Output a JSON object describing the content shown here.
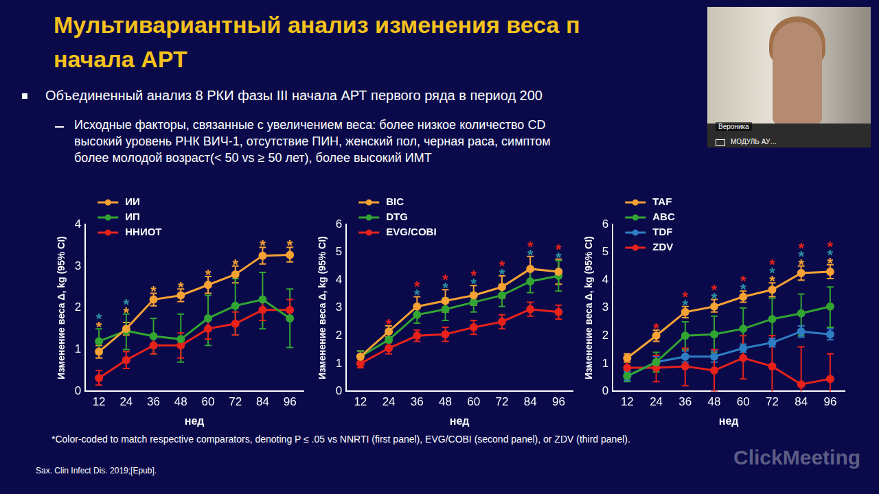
{
  "slide": {
    "title_lines": [
      "Мультивариантный анализ изменения веса п",
      "начала АРТ"
    ],
    "bullet": "Объединенный анализ 8 РКИ фазы III начала АРТ первого ряда в период 200",
    "sub_bullet_lines": [
      "Исходные факторы, связанные с увеличением веса: более низкое количество CD",
      "высокий уровень РНК ВИЧ-1, отсутствие ПИН, женский пол, черная раса, симптом",
      "более молодой возраст(< 50 vs ≥ 50 лет), более высокий ИМТ"
    ],
    "footnote": "*Color-coded to match respective comparators, denoting P ≤ .05 vs NNRTI (first panel), EVG/COBI (second panel), or ZDV (third panel).",
    "source": "Sax. Clin Infect Dis. 2019;[Epub].",
    "video_name": "Вероника",
    "video_label": "МОДУЛЬ АУ…",
    "watermark": "ClickMeeting"
  },
  "chart_data": [
    {
      "type": "line",
      "x_label": "нед",
      "y_label": "Изменение веса Δ, kg (95% CI)",
      "categories": [
        "12",
        "24",
        "36",
        "48",
        "60",
        "72",
        "84",
        "96"
      ],
      "ylim": [
        0,
        4
      ],
      "yticks": [
        0,
        1,
        2,
        3,
        4
      ],
      "grid": false,
      "legend": "top-left",
      "star_label": "*",
      "series": [
        {
          "name": "ИИ",
          "color": "#f7a234",
          "values": [
            0.95,
            1.5,
            2.2,
            2.3,
            2.55,
            2.8,
            3.25,
            3.27
          ],
          "ci_low": [
            0.8,
            1.35,
            2.05,
            2.15,
            2.35,
            2.6,
            3.05,
            3.1
          ],
          "ci_high": [
            1.1,
            1.65,
            2.35,
            2.45,
            2.75,
            3.0,
            3.45,
            3.45
          ]
        },
        {
          "name": "ИП",
          "color": "#33a532",
          "values": [
            1.2,
            1.45,
            1.32,
            1.25,
            1.75,
            2.05,
            2.2,
            1.75
          ],
          "ci_low": [
            0.9,
            1.0,
            0.9,
            0.7,
            1.1,
            1.35,
            1.5,
            1.05
          ],
          "ci_high": [
            1.5,
            1.85,
            1.75,
            1.85,
            2.3,
            2.7,
            2.85,
            2.45
          ]
        },
        {
          "name": "ННИОТ",
          "color": "#e8221b",
          "values": [
            0.32,
            0.75,
            1.1,
            1.1,
            1.5,
            1.62,
            1.95,
            1.95
          ],
          "ci_low": [
            0.15,
            0.55,
            0.9,
            0.8,
            1.25,
            1.35,
            1.7,
            1.7
          ],
          "ci_high": [
            0.5,
            0.95,
            1.35,
            1.4,
            1.8,
            1.9,
            2.2,
            2.2
          ]
        }
      ],
      "significance": [
        {
          "color": "#f7a234",
          "show": [
            true,
            true,
            true,
            true,
            true,
            true,
            true,
            true
          ]
        },
        {
          "color": "#2e8fa3",
          "show": [
            true,
            true,
            false,
            false,
            false,
            false,
            false,
            false
          ]
        }
      ]
    },
    {
      "type": "line",
      "x_label": "нед",
      "y_label": "Изменение веса Δ, kg (95% CI)",
      "categories": [
        "12",
        "24",
        "36",
        "48",
        "60",
        "72",
        "84",
        "96"
      ],
      "ylim": [
        0,
        6
      ],
      "yticks": [
        0,
        1,
        2,
        3,
        4,
        5,
        6
      ],
      "grid": false,
      "legend": "top-left",
      "star_label": "*",
      "series": [
        {
          "name": "BIC",
          "color": "#f7a234",
          "values": [
            1.25,
            2.15,
            3.05,
            3.25,
            3.45,
            3.75,
            4.4,
            4.3
          ],
          "ci_low": [
            1.05,
            1.95,
            2.7,
            2.85,
            3.1,
            3.35,
            3.95,
            3.85
          ],
          "ci_high": [
            1.45,
            2.35,
            3.4,
            3.65,
            3.8,
            4.15,
            4.85,
            4.75
          ]
        },
        {
          "name": "DTG",
          "color": "#33a532",
          "values": [
            1.25,
            1.85,
            2.75,
            2.95,
            3.2,
            3.45,
            3.95,
            4.15
          ],
          "ci_low": [
            1.05,
            1.6,
            2.45,
            2.55,
            2.85,
            3.05,
            3.55,
            3.6
          ],
          "ci_high": [
            1.45,
            2.1,
            3.05,
            3.35,
            3.55,
            3.85,
            4.35,
            4.7
          ]
        },
        {
          "name": "EVG/COBI",
          "color": "#e8221b",
          "values": [
            1.0,
            1.55,
            2.0,
            2.05,
            2.3,
            2.5,
            2.95,
            2.85
          ],
          "ci_low": [
            0.85,
            1.35,
            1.8,
            1.8,
            2.05,
            2.25,
            2.7,
            2.6
          ],
          "ci_high": [
            1.15,
            1.75,
            2.2,
            2.3,
            2.55,
            2.75,
            3.2,
            3.1
          ]
        }
      ],
      "significance": [
        {
          "color": "#2e8fa3",
          "show": [
            false,
            false,
            true,
            true,
            true,
            true,
            true,
            true
          ]
        },
        {
          "color": "#e8221b",
          "show": [
            false,
            true,
            true,
            true,
            true,
            true,
            true,
            true
          ]
        }
      ]
    },
    {
      "type": "line",
      "x_label": "нед",
      "y_label": "Изменение веса Δ, kg (95% CI)",
      "categories": [
        "12",
        "24",
        "36",
        "48",
        "60",
        "72",
        "84",
        "96"
      ],
      "ylim": [
        0,
        6
      ],
      "yticks": [
        0,
        1,
        2,
        3,
        4,
        5,
        6
      ],
      "grid": false,
      "legend": "top-left",
      "star_label": "*",
      "series": [
        {
          "name": "TAF",
          "color": "#f7a234",
          "values": [
            1.2,
            2.0,
            2.85,
            3.05,
            3.4,
            3.65,
            4.25,
            4.3
          ],
          "ci_low": [
            1.05,
            1.8,
            2.65,
            2.85,
            3.2,
            3.4,
            4.0,
            4.05
          ],
          "ci_high": [
            1.35,
            2.2,
            3.05,
            3.3,
            3.6,
            3.9,
            4.5,
            4.55
          ]
        },
        {
          "name": "ABC",
          "color": "#33a532",
          "values": [
            0.55,
            1.05,
            2.0,
            2.05,
            2.25,
            2.6,
            2.8,
            3.05
          ],
          "ci_low": [
            0.35,
            0.7,
            1.5,
            1.4,
            1.5,
            1.8,
            2.0,
            2.3
          ],
          "ci_high": [
            0.75,
            1.4,
            2.5,
            2.7,
            3.0,
            3.35,
            3.5,
            3.75
          ]
        },
        {
          "name": "TDF",
          "color": "#2e7ec4",
          "values": [
            0.55,
            1.05,
            1.25,
            1.25,
            1.55,
            1.75,
            2.15,
            2.05
          ],
          "ci_low": [
            0.4,
            0.85,
            1.05,
            1.05,
            1.4,
            1.6,
            1.95,
            1.85
          ],
          "ci_high": [
            0.7,
            1.25,
            1.45,
            1.45,
            1.7,
            1.9,
            2.35,
            2.25
          ]
        },
        {
          "name": "ZDV",
          "color": "#e8221b",
          "values": [
            0.85,
            0.85,
            0.9,
            0.75,
            1.2,
            0.9,
            0.25,
            0.45
          ],
          "ci_low": [
            0.55,
            0.35,
            0.2,
            0.0,
            0.45,
            -0.2,
            -1.0,
            -0.5
          ],
          "ci_high": [
            1.1,
            1.3,
            1.55,
            1.5,
            2.0,
            2.0,
            1.6,
            1.35
          ]
        }
      ],
      "significance": [
        {
          "color": "#f7a234",
          "show": [
            false,
            false,
            false,
            false,
            false,
            true,
            true,
            true
          ]
        },
        {
          "color": "#2e8fa3",
          "show": [
            false,
            false,
            true,
            true,
            true,
            true,
            true,
            true
          ]
        },
        {
          "color": "#e8221b",
          "show": [
            false,
            true,
            true,
            true,
            true,
            true,
            true,
            true
          ]
        }
      ]
    }
  ]
}
